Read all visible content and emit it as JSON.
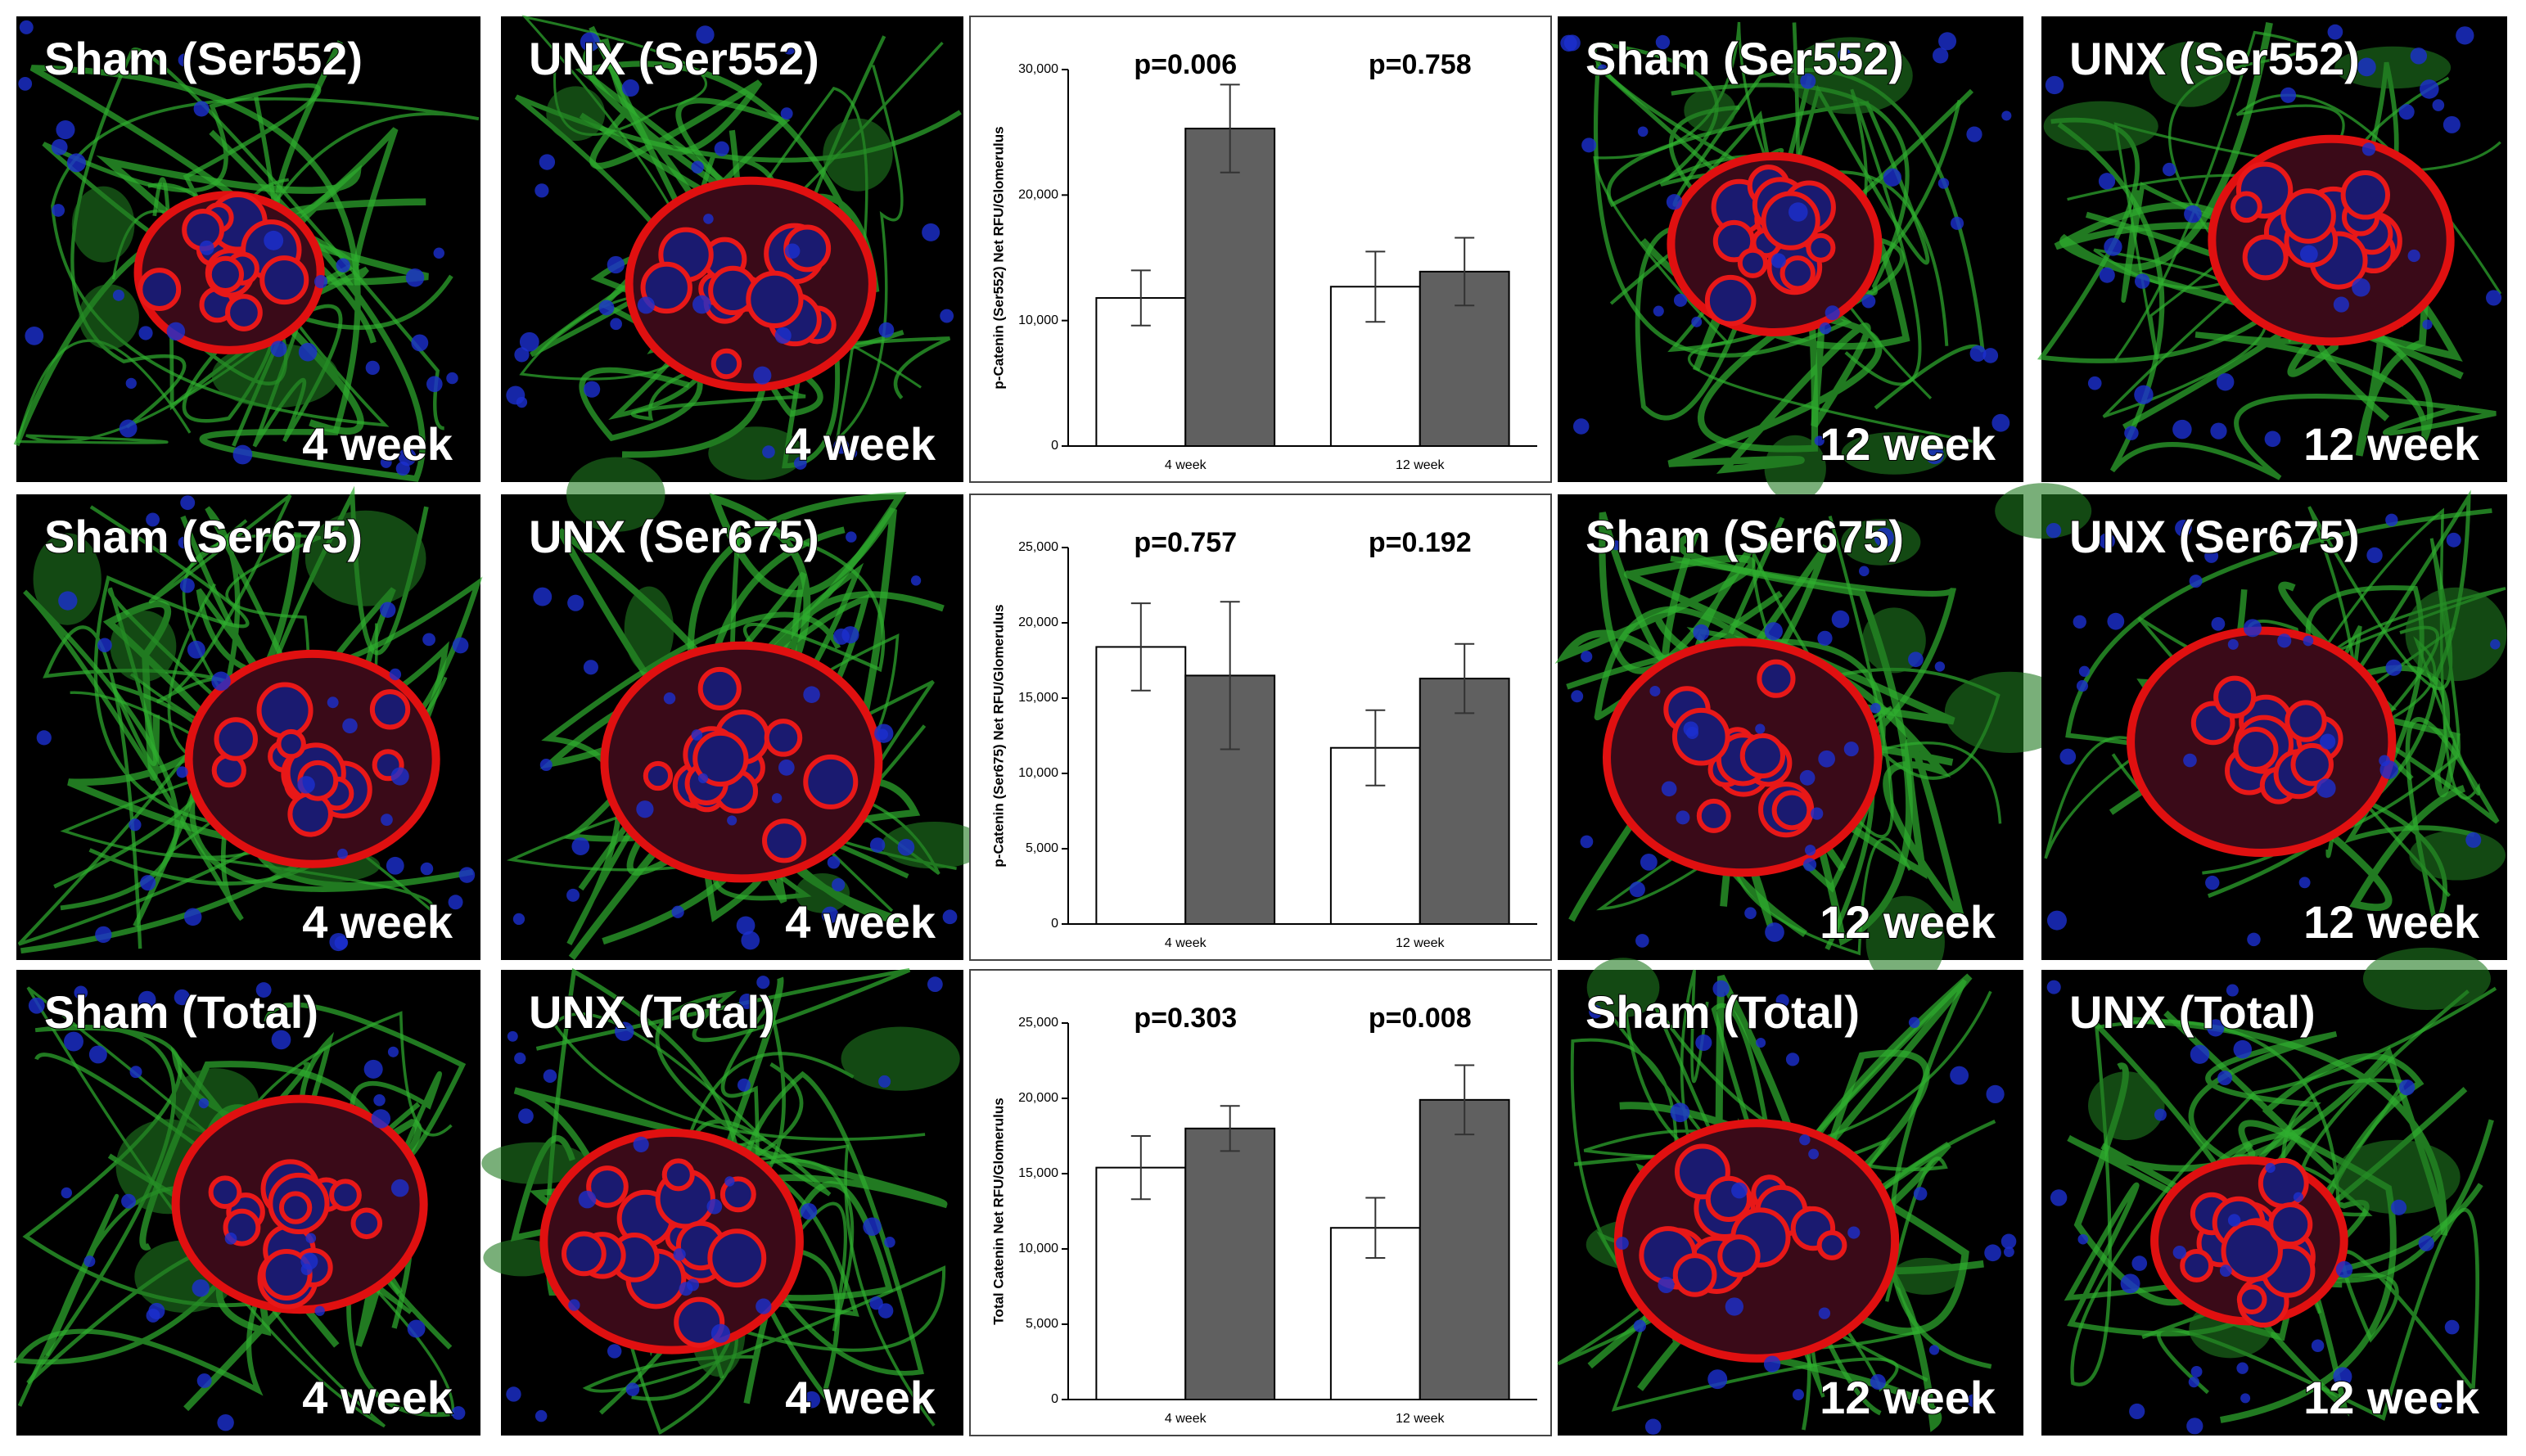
{
  "panels": [
    [
      {
        "label": "Sham (Ser552)",
        "time": "4 week"
      },
      {
        "label": "UNX (Ser552)",
        "time": "4 week"
      },
      {
        "label": "Sham (Ser552)",
        "time": "12 week"
      },
      {
        "label": "UNX (Ser552)",
        "time": "12 week"
      }
    ],
    [
      {
        "label": "Sham (Ser675)",
        "time": "4 week"
      },
      {
        "label": "UNX (Ser675)",
        "time": "4 week"
      },
      {
        "label": "Sham (Ser675)",
        "time": "12 week"
      },
      {
        "label": "UNX (Ser675)",
        "time": "12 week"
      }
    ],
    [
      {
        "label": "Sham (Total)",
        "time": "4 week"
      },
      {
        "label": "UNX (Total)",
        "time": "4 week"
      },
      {
        "label": "Sham (Total)",
        "time": "12 week"
      },
      {
        "label": "UNX (Total)",
        "time": "12 week"
      }
    ]
  ],
  "chart_data": [
    {
      "type": "bar",
      "y_label": "p-Catenin (Ser552) Net RFU/Glomerulus",
      "categories": [
        "4 week",
        "12 week"
      ],
      "series": [
        {
          "color": "#ffffff",
          "values": [
            11800,
            12700
          ],
          "errors": [
            2200,
            2800
          ]
        },
        {
          "color": "#606060",
          "values": [
            25300,
            13900
          ],
          "errors": [
            3500,
            2700
          ]
        }
      ],
      "ylim": [
        0,
        30000
      ],
      "yticks": [
        0,
        {
          "value": 10000,
          "label": "10,000"
        },
        {
          "value": 20000,
          "label": "20,000"
        },
        {
          "value": 30000,
          "label": "30,000"
        }
      ],
      "annotations": [
        "p=0.006",
        "p=0.758"
      ]
    },
    {
      "type": "bar",
      "y_label": "p-Catenin (Ser675) Net RFU/Glomerulus",
      "categories": [
        "4 week",
        "12 week"
      ],
      "series": [
        {
          "color": "#ffffff",
          "values": [
            18400,
            11700
          ],
          "errors": [
            2900,
            2500
          ]
        },
        {
          "color": "#606060",
          "values": [
            16500,
            16300
          ],
          "errors": [
            4900,
            2300
          ]
        }
      ],
      "ylim": [
        0,
        25000
      ],
      "yticks": [
        0,
        {
          "value": 5000,
          "label": "5,000"
        },
        {
          "value": 10000,
          "label": "10,000"
        },
        {
          "value": 15000,
          "label": "15,000"
        },
        {
          "value": 20000,
          "label": "20,000"
        },
        {
          "value": 25000,
          "label": "25,000"
        }
      ],
      "annotations": [
        "p=0.757",
        "p=0.192"
      ]
    },
    {
      "type": "bar",
      "y_label": "Total Catenin Net RFU/Glomerulus",
      "categories": [
        "4 week",
        "12 week"
      ],
      "series": [
        {
          "color": "#ffffff",
          "values": [
            15400,
            11400
          ],
          "errors": [
            2100,
            2000
          ]
        },
        {
          "color": "#606060",
          "values": [
            18000,
            19900
          ],
          "errors": [
            1500,
            2300
          ]
        }
      ],
      "ylim": [
        0,
        25000
      ],
      "yticks": [
        0,
        {
          "value": 5000,
          "label": "5,000"
        },
        {
          "value": 10000,
          "label": "10,000"
        },
        {
          "value": 15000,
          "label": "15,000"
        },
        {
          "value": 20000,
          "label": "20,000"
        },
        {
          "value": 25000,
          "label": "25,000"
        }
      ],
      "annotations": [
        "p=0.303",
        "p=0.008"
      ]
    }
  ]
}
